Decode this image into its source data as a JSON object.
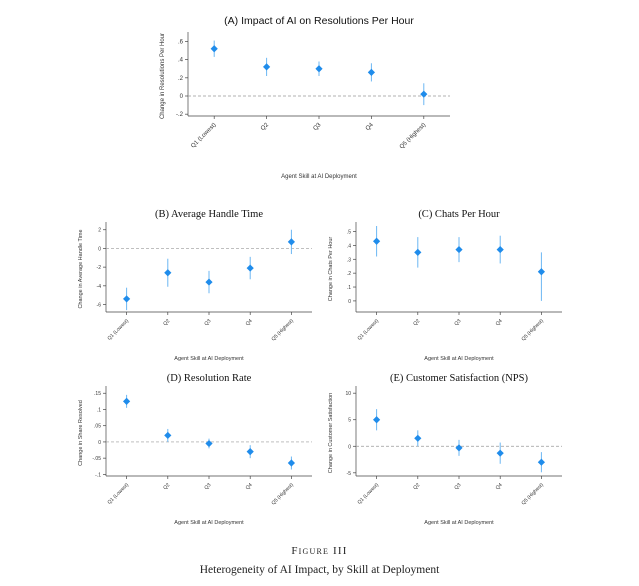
{
  "style": {
    "point_color": "#1f8ceb",
    "ci_color": "#6cb7f3",
    "axis_color": "#444444",
    "zero_line_color": "#999999"
  },
  "chart_data": [
    {
      "id": "A",
      "type": "scatter",
      "errorbars": true,
      "title_font": "sans",
      "title": "(A) Impact of AI on Resolutions Per Hour",
      "ylabel": "Change in Resolutions Per Hour",
      "xlabel": "Agent Skill at AI Deployment",
      "categories": [
        "Q1 (Lowest)",
        "Q2",
        "Q3",
        "Q4",
        "Q5 (Highest)"
      ],
      "ylim": [
        -0.22,
        0.66
      ],
      "yticks": [
        -0.2,
        0,
        0.2,
        0.4,
        0.6
      ],
      "ytick_labels": [
        "-.2",
        "0",
        ".2",
        ".4",
        ".6"
      ],
      "zero_line": 0,
      "values": [
        0.52,
        0.32,
        0.3,
        0.26,
        0.02
      ],
      "ci_low": [
        0.43,
        0.22,
        0.22,
        0.16,
        -0.1
      ],
      "ci_high": [
        0.61,
        0.42,
        0.38,
        0.36,
        0.14
      ]
    },
    {
      "id": "B",
      "type": "scatter",
      "errorbars": true,
      "title_font": "serif",
      "title": "(B) Average Handle Time",
      "ylabel": "Change in Average Handle Time",
      "xlabel": "Agent Skill at AI Deployment",
      "categories": [
        "Q1 (Lowest)",
        "Q2",
        "Q3",
        "Q4",
        "Q5 (Highest)"
      ],
      "ylim": [
        -6.8,
        2.4
      ],
      "yticks": [
        -6,
        -4,
        -2,
        0,
        2
      ],
      "ytick_labels": [
        "-6",
        "-4",
        "-2",
        "0",
        "2"
      ],
      "zero_line": 0,
      "values": [
        -5.4,
        -2.6,
        -3.6,
        -2.1,
        0.7
      ],
      "ci_low": [
        -6.6,
        -4.1,
        -4.8,
        -3.3,
        -0.6
      ],
      "ci_high": [
        -4.2,
        -1.1,
        -2.4,
        -0.9,
        2.0
      ]
    },
    {
      "id": "C",
      "type": "scatter",
      "errorbars": true,
      "title_font": "serif",
      "title": "(C) Chats Per Hour",
      "ylabel": "Change in Chats Per Hour",
      "xlabel": "Agent Skill at AI Deployment",
      "categories": [
        "Q1 (Lowest)",
        "Q2",
        "Q3",
        "Q4",
        "Q5 (Highest)"
      ],
      "ylim": [
        -0.08,
        0.54
      ],
      "yticks": [
        0,
        0.1,
        0.2,
        0.3,
        0.4,
        0.5
      ],
      "ytick_labels": [
        "0",
        ".1",
        ".2",
        ".3",
        ".4",
        ".5"
      ],
      "zero_line": null,
      "values": [
        0.43,
        0.35,
        0.37,
        0.37,
        0.21
      ],
      "ci_low": [
        0.32,
        0.24,
        0.28,
        0.27,
        0.0
      ],
      "ci_high": [
        0.54,
        0.46,
        0.46,
        0.47,
        0.35
      ]
    },
    {
      "id": "D",
      "type": "scatter",
      "errorbars": true,
      "title_font": "serif",
      "title": "(D) Resolution Rate",
      "ylabel": "Change in Share Resolved",
      "xlabel": "Agent Skill at AI Deployment",
      "categories": [
        "Q1 (Lowest)",
        "Q2",
        "Q3",
        "Q4",
        "Q5 (Highest)"
      ],
      "ylim": [
        -0.105,
        0.16
      ],
      "yticks": [
        -0.1,
        -0.05,
        0,
        0.05,
        0.1,
        0.15
      ],
      "ytick_labels": [
        "-.1",
        "-.05",
        "0",
        ".05",
        ".1",
        ".15"
      ],
      "zero_line": 0,
      "values": [
        0.125,
        0.02,
        -0.005,
        -0.03,
        -0.065
      ],
      "ci_low": [
        0.105,
        0.0,
        -0.02,
        -0.05,
        -0.085
      ],
      "ci_high": [
        0.145,
        0.04,
        0.01,
        -0.01,
        -0.045
      ]
    },
    {
      "id": "E",
      "type": "scatter",
      "errorbars": true,
      "title_font": "serif",
      "title": "(E) Customer Satisfaction (NPS)",
      "ylabel": "Change in Customer Satisfaction",
      "xlabel": "Agent Skill at AI Deployment",
      "categories": [
        "Q1 (Lowest)",
        "Q2",
        "Q3",
        "Q4",
        "Q5 (Highest)"
      ],
      "ylim": [
        -5.6,
        10.6
      ],
      "yticks": [
        -5,
        0,
        5,
        10
      ],
      "ytick_labels": [
        "-5",
        "0",
        "5",
        "10"
      ],
      "zero_line": 0,
      "values": [
        5.0,
        1.5,
        -0.3,
        -1.3,
        -3.0
      ],
      "ci_low": [
        3.0,
        0.0,
        -1.8,
        -3.3,
        -4.9
      ],
      "ci_high": [
        7.0,
        3.0,
        1.2,
        0.7,
        -1.1
      ]
    }
  ],
  "figure": {
    "label": "Figure III",
    "title": "Heterogeneity of AI Impact, by Skill at Deployment"
  }
}
